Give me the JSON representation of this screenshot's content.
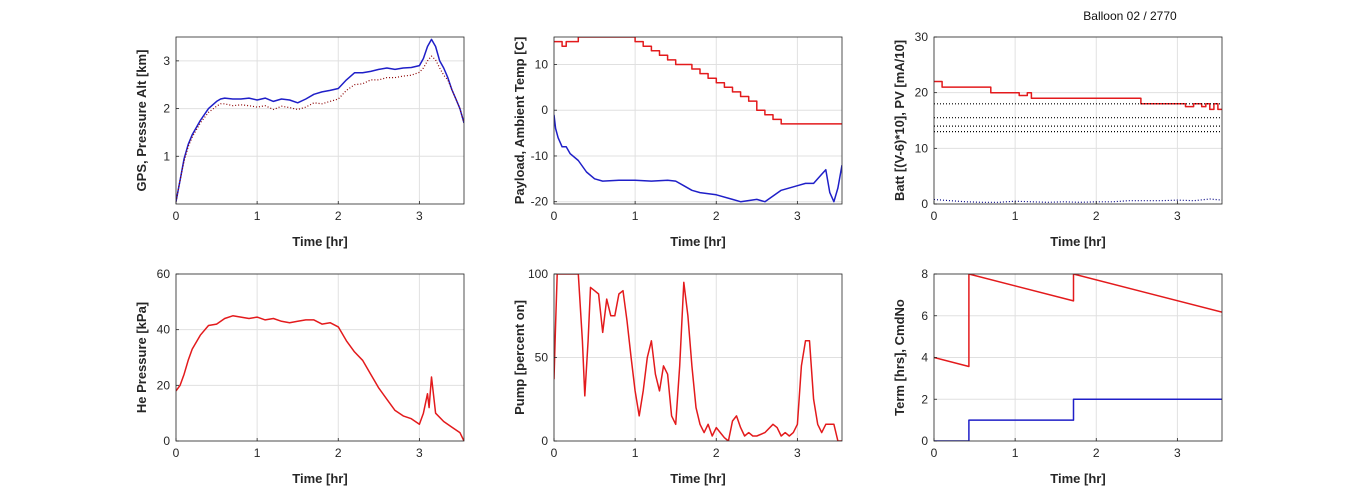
{
  "figure": {
    "title": "Balloon 02 / 2770",
    "colors": {
      "red": "#e31a1c",
      "blue": "#1f1fc8",
      "darkred": "#8b0000",
      "navy": "#000080",
      "grid": "#e0e0e0",
      "axis": "#262626"
    }
  },
  "chart_data": [
    {
      "type": "line",
      "xlabel": "Time [hr]",
      "ylabel": "GPS, Pressure Alt [km]",
      "xlim": [
        0,
        3.55
      ],
      "ylim": [
        0,
        3.5
      ],
      "xticks": [
        0,
        1,
        2,
        3
      ],
      "yticks": [
        1,
        2,
        3
      ],
      "grid": true,
      "series": [
        {
          "color": "#1f1fc8",
          "style": "solid",
          "x": [
            0,
            0.05,
            0.1,
            0.15,
            0.2,
            0.3,
            0.4,
            0.5,
            0.55,
            0.6,
            0.7,
            0.8,
            0.9,
            1.0,
            1.1,
            1.2,
            1.3,
            1.4,
            1.5,
            1.6,
            1.7,
            1.8,
            1.9,
            2.0,
            2.1,
            2.2,
            2.3,
            2.4,
            2.5,
            2.6,
            2.7,
            2.8,
            2.9,
            3.0,
            3.05,
            3.1,
            3.15,
            3.2,
            3.25,
            3.3,
            3.35,
            3.4,
            3.45,
            3.5,
            3.55
          ],
          "y": [
            0.05,
            0.5,
            0.95,
            1.25,
            1.45,
            1.75,
            2.0,
            2.15,
            2.2,
            2.22,
            2.2,
            2.2,
            2.22,
            2.18,
            2.22,
            2.15,
            2.2,
            2.18,
            2.12,
            2.2,
            2.3,
            2.35,
            2.38,
            2.42,
            2.6,
            2.75,
            2.75,
            2.78,
            2.82,
            2.85,
            2.82,
            2.85,
            2.86,
            2.9,
            3.05,
            3.3,
            3.45,
            3.3,
            3.0,
            2.85,
            2.65,
            2.4,
            2.2,
            2.0,
            1.7
          ]
        },
        {
          "color": "#8b0000",
          "style": "dotted",
          "x": [
            0,
            0.05,
            0.1,
            0.15,
            0.2,
            0.3,
            0.4,
            0.5,
            0.55,
            0.6,
            0.7,
            0.8,
            0.9,
            1.0,
            1.1,
            1.2,
            1.3,
            1.4,
            1.5,
            1.6,
            1.7,
            1.8,
            1.9,
            2.0,
            2.1,
            2.2,
            2.3,
            2.4,
            2.5,
            2.6,
            2.7,
            2.8,
            2.9,
            3.0,
            3.05,
            3.1,
            3.15,
            3.2,
            3.25,
            3.3,
            3.35,
            3.4,
            3.45,
            3.5,
            3.55
          ],
          "y": [
            0.05,
            0.5,
            0.9,
            1.2,
            1.4,
            1.7,
            1.92,
            2.05,
            2.1,
            2.1,
            2.06,
            2.08,
            2.06,
            2.03,
            2.06,
            1.98,
            2.05,
            2.02,
            1.98,
            2.03,
            2.12,
            2.1,
            2.15,
            2.2,
            2.38,
            2.5,
            2.52,
            2.6,
            2.6,
            2.65,
            2.65,
            2.68,
            2.7,
            2.76,
            2.85,
            3.0,
            3.1,
            3.02,
            2.85,
            2.7,
            2.6,
            2.4,
            2.2,
            2.0,
            1.7
          ]
        }
      ]
    },
    {
      "type": "line",
      "xlabel": "Time [hr]",
      "ylabel": "Payload, Ambient Temp [C]",
      "xlim": [
        0,
        3.55
      ],
      "ylim": [
        -20.5,
        16
      ],
      "xticks": [
        0,
        1,
        2,
        3
      ],
      "yticks": [
        -20,
        -10,
        0,
        10
      ],
      "grid": true,
      "series": [
        {
          "color": "#e31a1c",
          "style": "step",
          "x": [
            0,
            0.1,
            0.15,
            0.25,
            0.3,
            0.7,
            1.0,
            1.1,
            1.2,
            1.3,
            1.4,
            1.5,
            1.6,
            1.7,
            1.8,
            1.9,
            2.0,
            2.1,
            2.2,
            2.3,
            2.4,
            2.5,
            2.6,
            2.7,
            2.8,
            2.9,
            3.0,
            3.3,
            3.55
          ],
          "y": [
            15,
            14,
            15,
            15,
            16,
            16,
            15,
            14,
            13,
            12,
            11,
            10,
            10,
            9,
            8,
            7,
            6,
            5,
            4,
            3,
            2,
            0,
            -1,
            -2,
            -3,
            -3,
            -3,
            -3,
            -3
          ]
        },
        {
          "color": "#1f1fc8",
          "style": "solid",
          "x": [
            0,
            0.02,
            0.05,
            0.1,
            0.15,
            0.2,
            0.3,
            0.4,
            0.5,
            0.6,
            0.8,
            1.0,
            1.2,
            1.4,
            1.5,
            1.6,
            1.7,
            1.8,
            2.0,
            2.2,
            2.3,
            2.5,
            2.6,
            2.8,
            3.0,
            3.1,
            3.2,
            3.3,
            3.35,
            3.4,
            3.45,
            3.5,
            3.55
          ],
          "y": [
            -1,
            -4,
            -6,
            -8,
            -8,
            -9.5,
            -11,
            -13.5,
            -15,
            -15.5,
            -15.3,
            -15.3,
            -15.5,
            -15.3,
            -15.5,
            -16.5,
            -17.5,
            -18,
            -18.5,
            -19.5,
            -20,
            -19.5,
            -20,
            -17.5,
            -16.5,
            -16,
            -16,
            -14,
            -13,
            -18,
            -20,
            -17,
            -12
          ]
        }
      ]
    },
    {
      "type": "line",
      "xlabel": "Time [hr]",
      "ylabel": "Batt [(V-6)*10], PV [mA/10]",
      "xlim": [
        0,
        3.55
      ],
      "ylim": [
        0,
        30
      ],
      "xticks": [
        0,
        1,
        2,
        3
      ],
      "yticks": [
        0,
        10,
        20,
        30
      ],
      "grid": true,
      "series": [
        {
          "color": "#e31a1c",
          "style": "step",
          "x": [
            0,
            0.1,
            0.15,
            0.65,
            0.7,
            1.0,
            1.05,
            1.15,
            1.2,
            1.3,
            2.5,
            2.55,
            3.05,
            3.1,
            3.2,
            3.3,
            3.35,
            3.4,
            3.45,
            3.5,
            3.55
          ],
          "y": [
            22,
            21,
            21,
            21,
            20,
            20,
            19.5,
            20,
            19,
            19,
            19,
            18,
            18,
            17.5,
            18,
            17.5,
            18,
            17,
            18,
            17,
            17
          ]
        },
        {
          "color": "#000000",
          "style": "dotted",
          "x": [
            0,
            3.55
          ],
          "y": [
            18,
            18
          ]
        },
        {
          "color": "#000000",
          "style": "dotted",
          "x": [
            0,
            3.55
          ],
          "y": [
            15.5,
            15.5
          ]
        },
        {
          "color": "#000000",
          "style": "dotted",
          "x": [
            0,
            3.55
          ],
          "y": [
            14,
            14
          ]
        },
        {
          "color": "#000000",
          "style": "dotted",
          "x": [
            0,
            3.55
          ],
          "y": [
            13,
            13
          ]
        },
        {
          "color": "#000080",
          "style": "dotted",
          "x": [
            0,
            0.2,
            0.4,
            0.6,
            0.8,
            1.0,
            1.2,
            1.4,
            1.6,
            1.8,
            2.0,
            2.2,
            2.4,
            2.6,
            2.8,
            3.0,
            3.2,
            3.4,
            3.55
          ],
          "y": [
            0.8,
            0.6,
            0.4,
            0.3,
            0.3,
            0.5,
            0.4,
            0.3,
            0.4,
            0.3,
            0.4,
            0.4,
            0.6,
            0.6,
            0.6,
            0.7,
            0.6,
            0.9,
            0.7
          ]
        }
      ]
    },
    {
      "type": "line",
      "xlabel": "Time [hr]",
      "ylabel": "He Pressure [kPa]",
      "xlim": [
        0,
        3.55
      ],
      "ylim": [
        0,
        60
      ],
      "xticks": [
        0,
        1,
        2,
        3
      ],
      "yticks": [
        0,
        20,
        40,
        60
      ],
      "grid": true,
      "series": [
        {
          "color": "#e31a1c",
          "style": "solid",
          "x": [
            0,
            0.05,
            0.1,
            0.15,
            0.2,
            0.3,
            0.4,
            0.5,
            0.6,
            0.7,
            0.8,
            0.9,
            1.0,
            1.1,
            1.2,
            1.3,
            1.4,
            1.5,
            1.6,
            1.7,
            1.8,
            1.9,
            2.0,
            2.1,
            2.2,
            2.3,
            2.4,
            2.5,
            2.6,
            2.7,
            2.8,
            2.9,
            3.0,
            3.05,
            3.1,
            3.12,
            3.15,
            3.2,
            3.3,
            3.4,
            3.5,
            3.55
          ],
          "y": [
            18,
            20,
            24,
            29,
            33,
            38,
            41.5,
            42,
            44,
            45,
            44.5,
            44,
            44.5,
            43.5,
            44,
            43,
            42.5,
            43,
            43.5,
            43.5,
            42,
            42.5,
            41,
            36,
            32,
            29,
            24,
            19,
            15,
            11,
            9,
            8,
            6,
            10,
            17,
            12,
            23,
            10,
            7,
            5,
            3,
            0
          ]
        }
      ]
    },
    {
      "type": "line",
      "xlabel": "Time [hr]",
      "ylabel": "Pump [percent on]",
      "xlim": [
        0,
        3.55
      ],
      "ylim": [
        0,
        100
      ],
      "xticks": [
        0,
        1,
        2,
        3
      ],
      "yticks": [
        0,
        50,
        100
      ],
      "grid": true,
      "series": [
        {
          "color": "#e31a1c",
          "style": "solid",
          "x": [
            0,
            0.02,
            0.04,
            0.3,
            0.35,
            0.38,
            0.42,
            0.45,
            0.5,
            0.55,
            0.6,
            0.65,
            0.7,
            0.75,
            0.8,
            0.85,
            0.9,
            0.95,
            1.0,
            1.05,
            1.1,
            1.15,
            1.2,
            1.25,
            1.3,
            1.35,
            1.4,
            1.45,
            1.5,
            1.55,
            1.6,
            1.65,
            1.7,
            1.75,
            1.8,
            1.85,
            1.9,
            1.95,
            2.0,
            2.05,
            2.1,
            2.15,
            2.2,
            2.25,
            2.3,
            2.35,
            2.4,
            2.45,
            2.5,
            2.6,
            2.7,
            2.75,
            2.8,
            2.85,
            2.9,
            2.95,
            3.0,
            3.05,
            3.1,
            3.15,
            3.2,
            3.25,
            3.3,
            3.35,
            3.4,
            3.45,
            3.5,
            3.55
          ],
          "y": [
            37,
            70,
            100,
            100,
            60,
            27,
            60,
            92,
            90,
            88,
            65,
            85,
            75,
            75,
            88,
            90,
            72,
            50,
            30,
            15,
            30,
            50,
            60,
            40,
            30,
            45,
            40,
            15,
            10,
            45,
            95,
            75,
            45,
            20,
            10,
            5,
            10,
            3,
            8,
            5,
            2,
            0,
            12,
            15,
            8,
            3,
            5,
            3,
            3,
            5,
            10,
            8,
            3,
            5,
            3,
            5,
            10,
            45,
            60,
            60,
            25,
            10,
            5,
            10,
            10,
            10,
            0,
            0
          ]
        }
      ]
    },
    {
      "type": "line",
      "xlabel": "Time [hr]",
      "ylabel": "Term [hrs], CmdNo",
      "xlim": [
        0,
        3.55
      ],
      "ylim": [
        0,
        8
      ],
      "xticks": [
        0,
        1,
        2,
        3
      ],
      "yticks": [
        0,
        2,
        4,
        6,
        8
      ],
      "grid": true,
      "series": [
        {
          "color": "#e31a1c",
          "style": "solid",
          "x": [
            0,
            0.43,
            0.43,
            1.72,
            1.72,
            3.55
          ],
          "y": [
            4,
            3.57,
            8,
            6.71,
            8,
            6.17
          ]
        },
        {
          "color": "#1f1fc8",
          "style": "solid",
          "x": [
            0,
            0.43,
            0.43,
            1.72,
            1.72,
            3.55
          ],
          "y": [
            0,
            0,
            1,
            1,
            2,
            2
          ]
        }
      ]
    }
  ]
}
